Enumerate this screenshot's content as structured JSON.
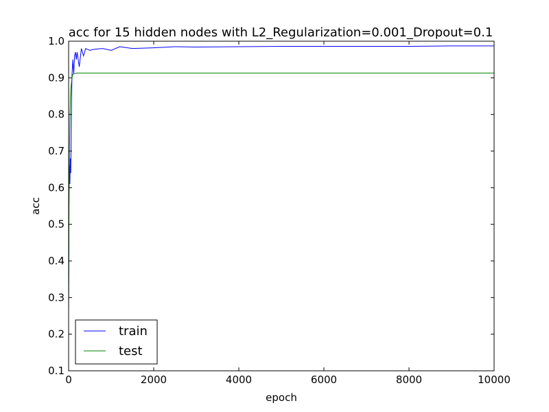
{
  "chart_data": {
    "type": "line",
    "title": "acc for 15 hidden nodes with L2_Regularization=0.001_Dropout=0.1",
    "xlabel": "epoch",
    "ylabel": "acc",
    "xlim": [
      0,
      10000
    ],
    "ylim": [
      0.1,
      1.0
    ],
    "xticks": [
      0,
      2000,
      4000,
      6000,
      8000,
      10000
    ],
    "xtick_labels": [
      "0",
      "2000",
      "4000",
      "6000",
      "8000",
      "10000"
    ],
    "yticks": [
      0.1,
      0.2,
      0.3,
      0.4,
      0.5,
      0.6,
      0.7,
      0.8,
      0.9,
      1.0
    ],
    "ytick_labels": [
      "0.1",
      "0.2",
      "0.3",
      "0.4",
      "0.5",
      "0.6",
      "0.7",
      "0.8",
      "0.9",
      "1.0"
    ],
    "grid": false,
    "legend_position": "lower-left",
    "series": [
      {
        "name": "train",
        "color": "#0000ff",
        "x": [
          0,
          10,
          20,
          30,
          40,
          50,
          60,
          70,
          80,
          90,
          100,
          120,
          140,
          160,
          180,
          200,
          250,
          300,
          350,
          400,
          500,
          600,
          800,
          1000,
          1200,
          1500,
          2000,
          2500,
          3000,
          4000,
          5000,
          6000,
          7000,
          8000,
          9000,
          10000
        ],
        "values": [
          0.26,
          0.62,
          0.66,
          0.61,
          0.68,
          0.64,
          0.74,
          0.84,
          0.91,
          0.93,
          0.95,
          0.91,
          0.96,
          0.97,
          0.95,
          0.97,
          0.93,
          0.98,
          0.96,
          0.98,
          0.975,
          0.978,
          0.98,
          0.975,
          0.985,
          0.98,
          0.982,
          0.985,
          0.984,
          0.985,
          0.986,
          0.986,
          0.986,
          0.986,
          0.987,
          0.987
        ]
      },
      {
        "name": "test",
        "color": "#008000",
        "x": [
          0,
          10,
          20,
          30,
          40,
          50,
          60,
          80,
          100,
          150,
          200,
          500,
          1000,
          10000
        ],
        "values": [
          0.26,
          0.55,
          0.7,
          0.78,
          0.84,
          0.87,
          0.88,
          0.9,
          0.91,
          0.912,
          0.913,
          0.913,
          0.913,
          0.913
        ]
      }
    ]
  }
}
